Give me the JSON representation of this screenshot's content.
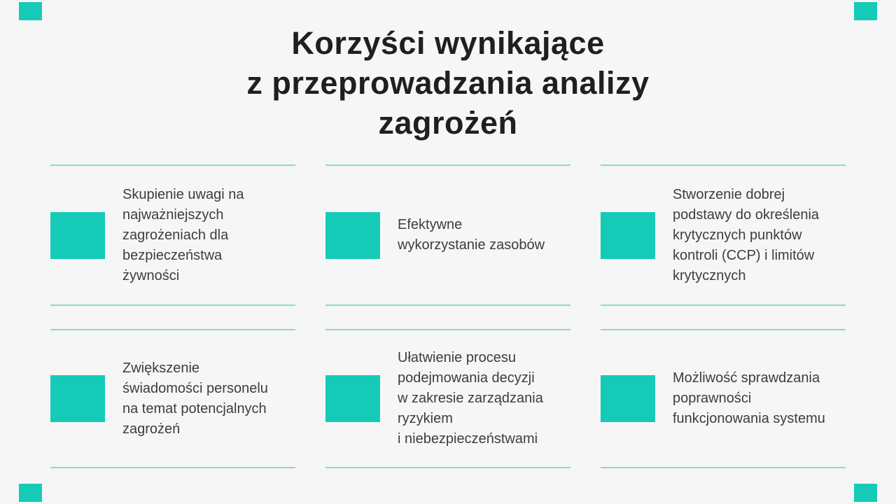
{
  "slide": {
    "title": "Korzyści wynikające\nz przeprowadzania analizy\nzagrożeń"
  },
  "benefits": [
    {
      "label": "Skupienie uwagi na\nnajważniejszych\nzagrożeniach dla\nbezpieczeństwa\nżywności"
    },
    {
      "label": "Efektywne\nwykorzystanie zasobów"
    },
    {
      "label": "Stworzenie dobrej\npodstawy do określenia\nkrytycznych punktów\nkontroli (CCP) i limitów\nkrytycznych"
    },
    {
      "label": "Zwiększenie\nświadomości personelu\nna temat potencjalnych\nzagrożeń"
    },
    {
      "label": "Ułatwienie procesu\npodejmowania decyzji\nw zakresie zarządzania\nryzykiem\ni niebezpieczeństwami"
    },
    {
      "label": "Możliwość sprawdzania\npoprawności\nfunkcjonowania systemu"
    }
  ],
  "colors": {
    "accent": "#15cbb8",
    "divider": "#8bd9d1",
    "background": "#f6f6f6",
    "title_text": "#1f1f1f",
    "body_text": "#3d3d3d"
  }
}
